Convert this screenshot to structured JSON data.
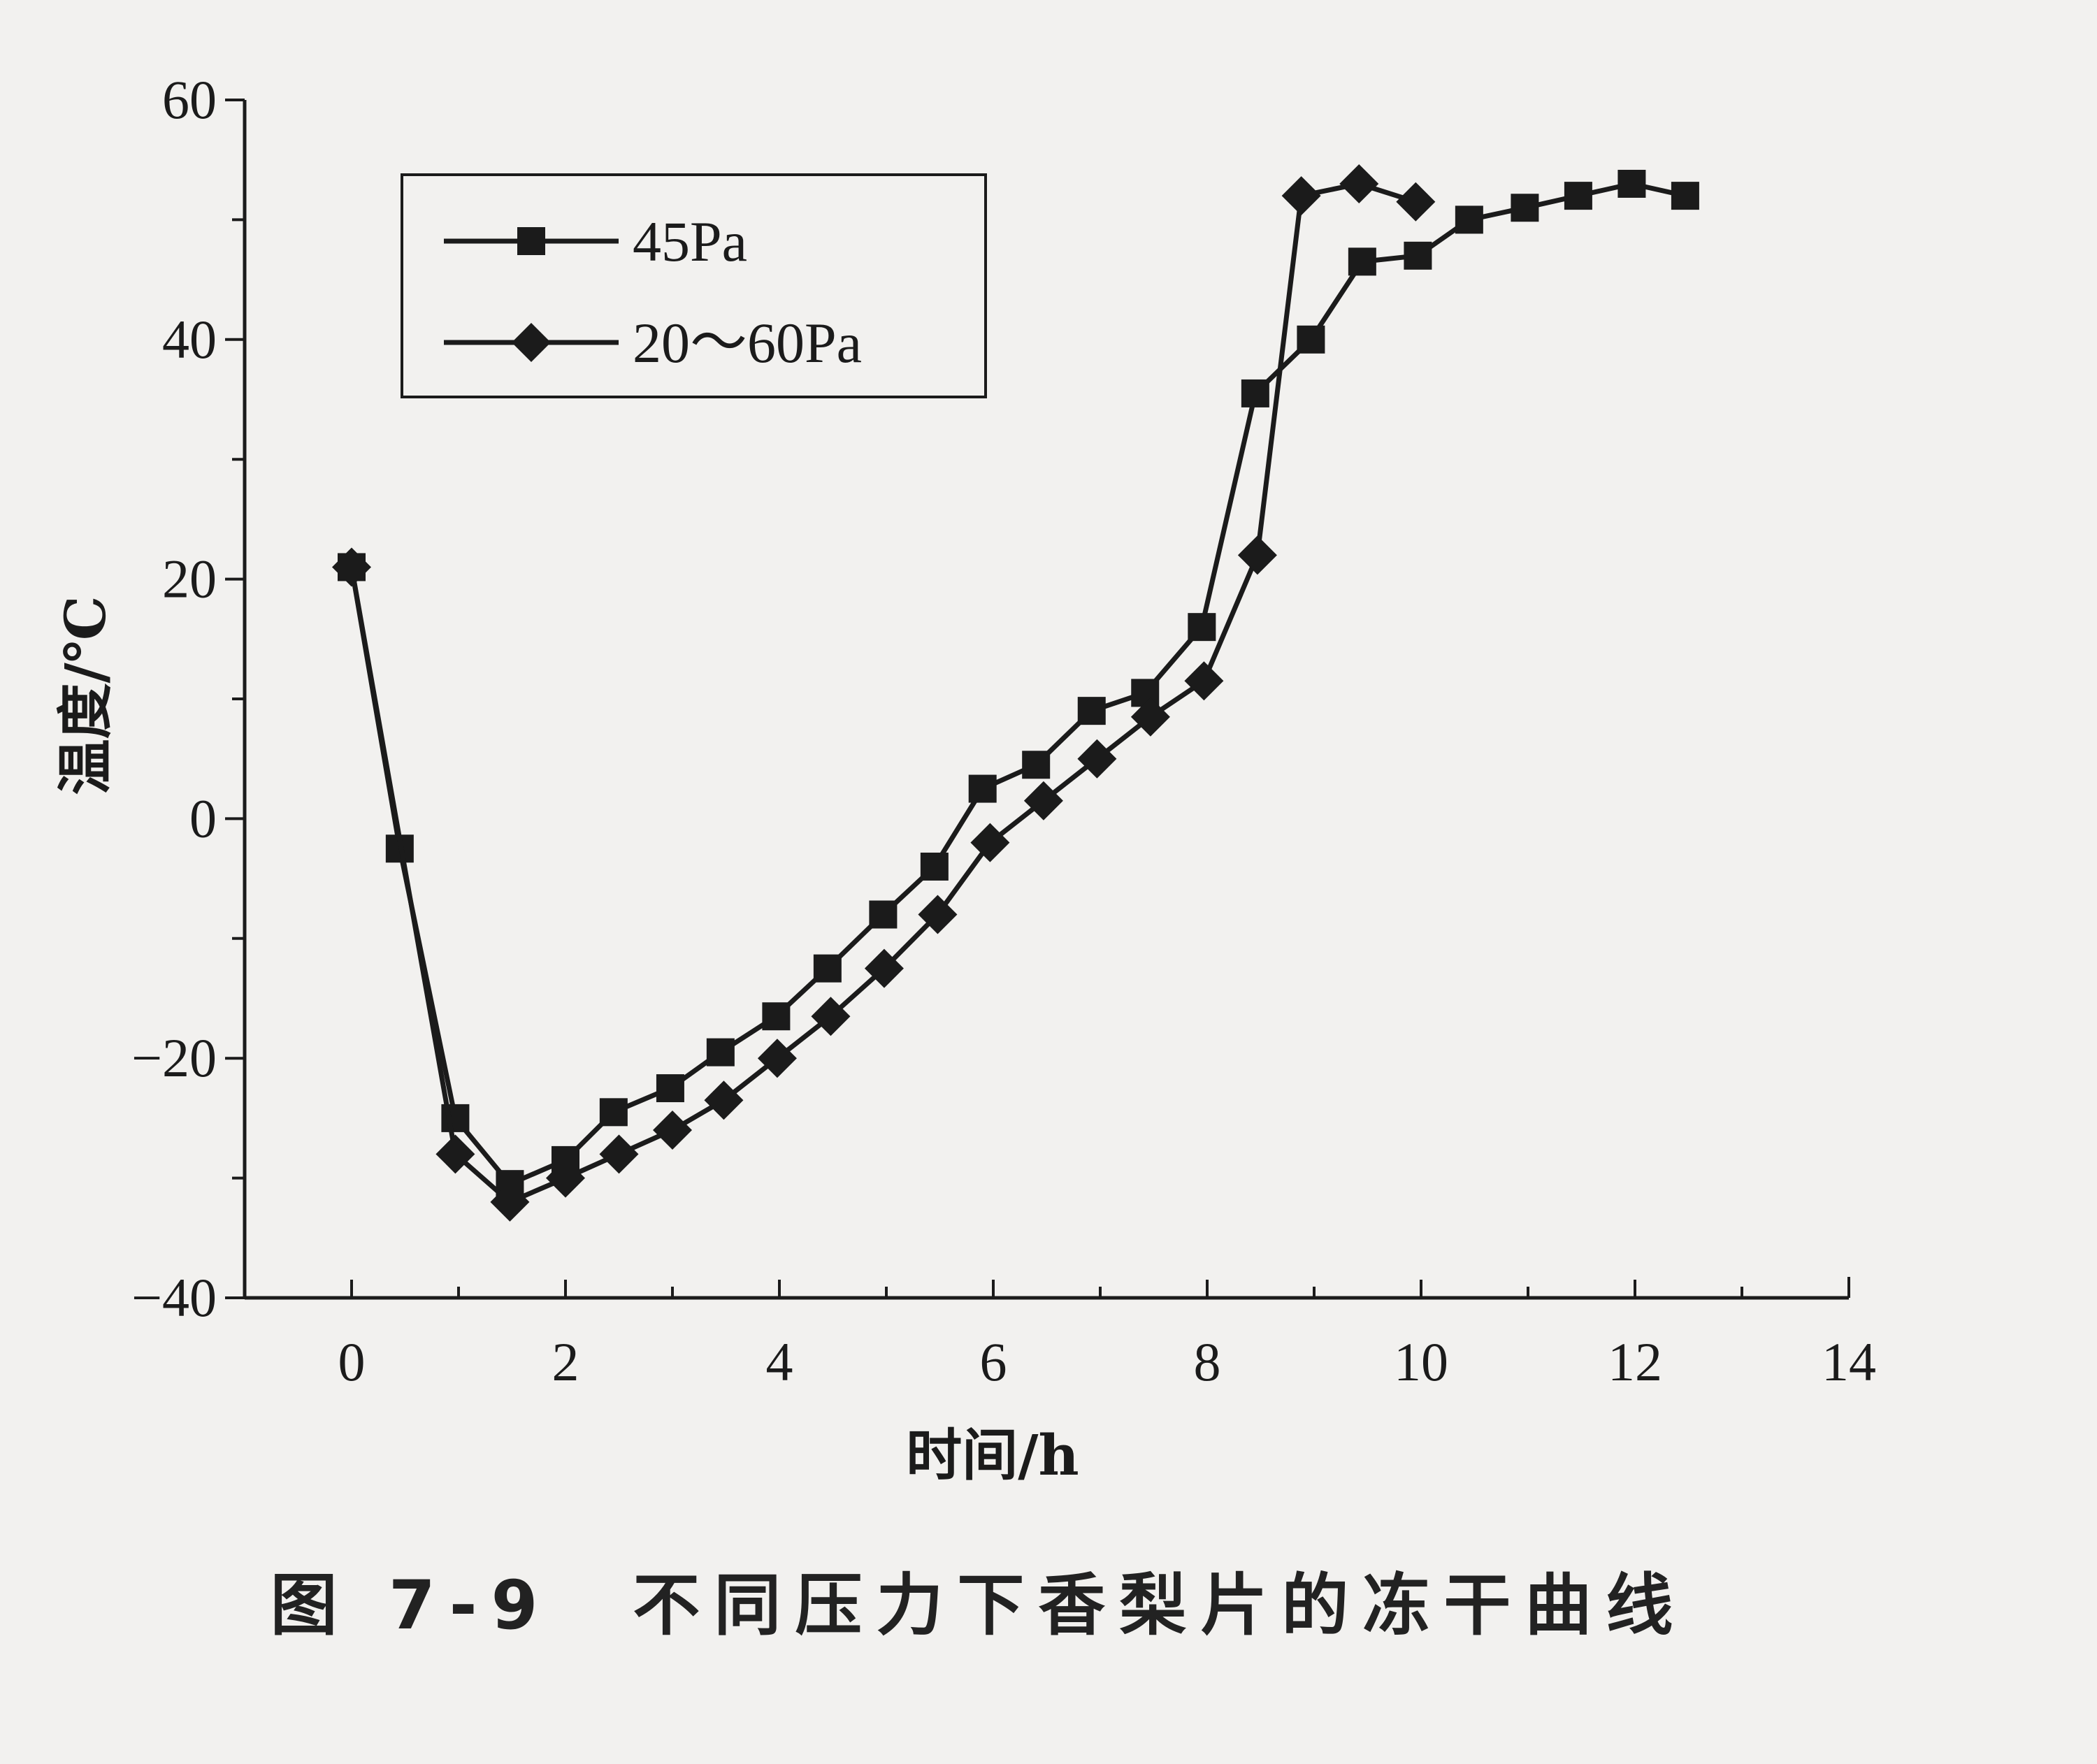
{
  "caption": "图 7-9　不同压力下香梨片的冻干曲线",
  "chart_data": {
    "type": "line",
    "title": "",
    "xlabel": "时间/h",
    "ylabel": "温度/℃",
    "xlim": [
      -1,
      14
    ],
    "ylim": [
      -40,
      60
    ],
    "x_ticks": [
      0,
      2,
      4,
      6,
      8,
      10,
      12,
      14
    ],
    "y_ticks": [
      -40,
      -20,
      0,
      20,
      40,
      60
    ],
    "grid": false,
    "legend_position": "top-left",
    "series": [
      {
        "name": "45Pa",
        "marker": "square",
        "points": [
          [
            0,
            21
          ],
          [
            0.45,
            -2.5
          ],
          [
            0.97,
            -25
          ],
          [
            1.48,
            -30.5
          ],
          [
            2.0,
            -28.5
          ],
          [
            2.45,
            -24.5
          ],
          [
            2.98,
            -22.5
          ],
          [
            3.45,
            -19.5
          ],
          [
            3.97,
            -16.5
          ],
          [
            4.45,
            -12.5
          ],
          [
            4.97,
            -8
          ],
          [
            5.45,
            -4
          ],
          [
            5.9,
            2.5
          ],
          [
            6.4,
            4.5
          ],
          [
            6.92,
            9
          ],
          [
            7.42,
            10.5
          ],
          [
            7.95,
            16
          ],
          [
            8.45,
            35.5
          ],
          [
            8.97,
            40
          ],
          [
            9.45,
            46.5
          ],
          [
            9.97,
            47
          ],
          [
            10.45,
            50
          ],
          [
            10.97,
            51
          ],
          [
            11.47,
            52
          ],
          [
            11.97,
            53
          ],
          [
            12.47,
            52
          ]
        ]
      },
      {
        "name": "20～60Pa",
        "marker": "diamond",
        "points": [
          [
            0,
            21
          ],
          [
            0.97,
            -28
          ],
          [
            1.48,
            -32
          ],
          [
            2.0,
            -30
          ],
          [
            2.5,
            -28
          ],
          [
            3.0,
            -26
          ],
          [
            3.48,
            -23.5
          ],
          [
            3.98,
            -20
          ],
          [
            4.48,
            -16.5
          ],
          [
            4.98,
            -12.5
          ],
          [
            5.48,
            -8
          ],
          [
            5.97,
            -2
          ],
          [
            6.47,
            1.5
          ],
          [
            6.97,
            5
          ],
          [
            7.47,
            8.5
          ],
          [
            7.97,
            11.5
          ],
          [
            8.47,
            22
          ],
          [
            8.88,
            52
          ],
          [
            9.42,
            53
          ],
          [
            9.95,
            51.5
          ]
        ]
      }
    ]
  }
}
